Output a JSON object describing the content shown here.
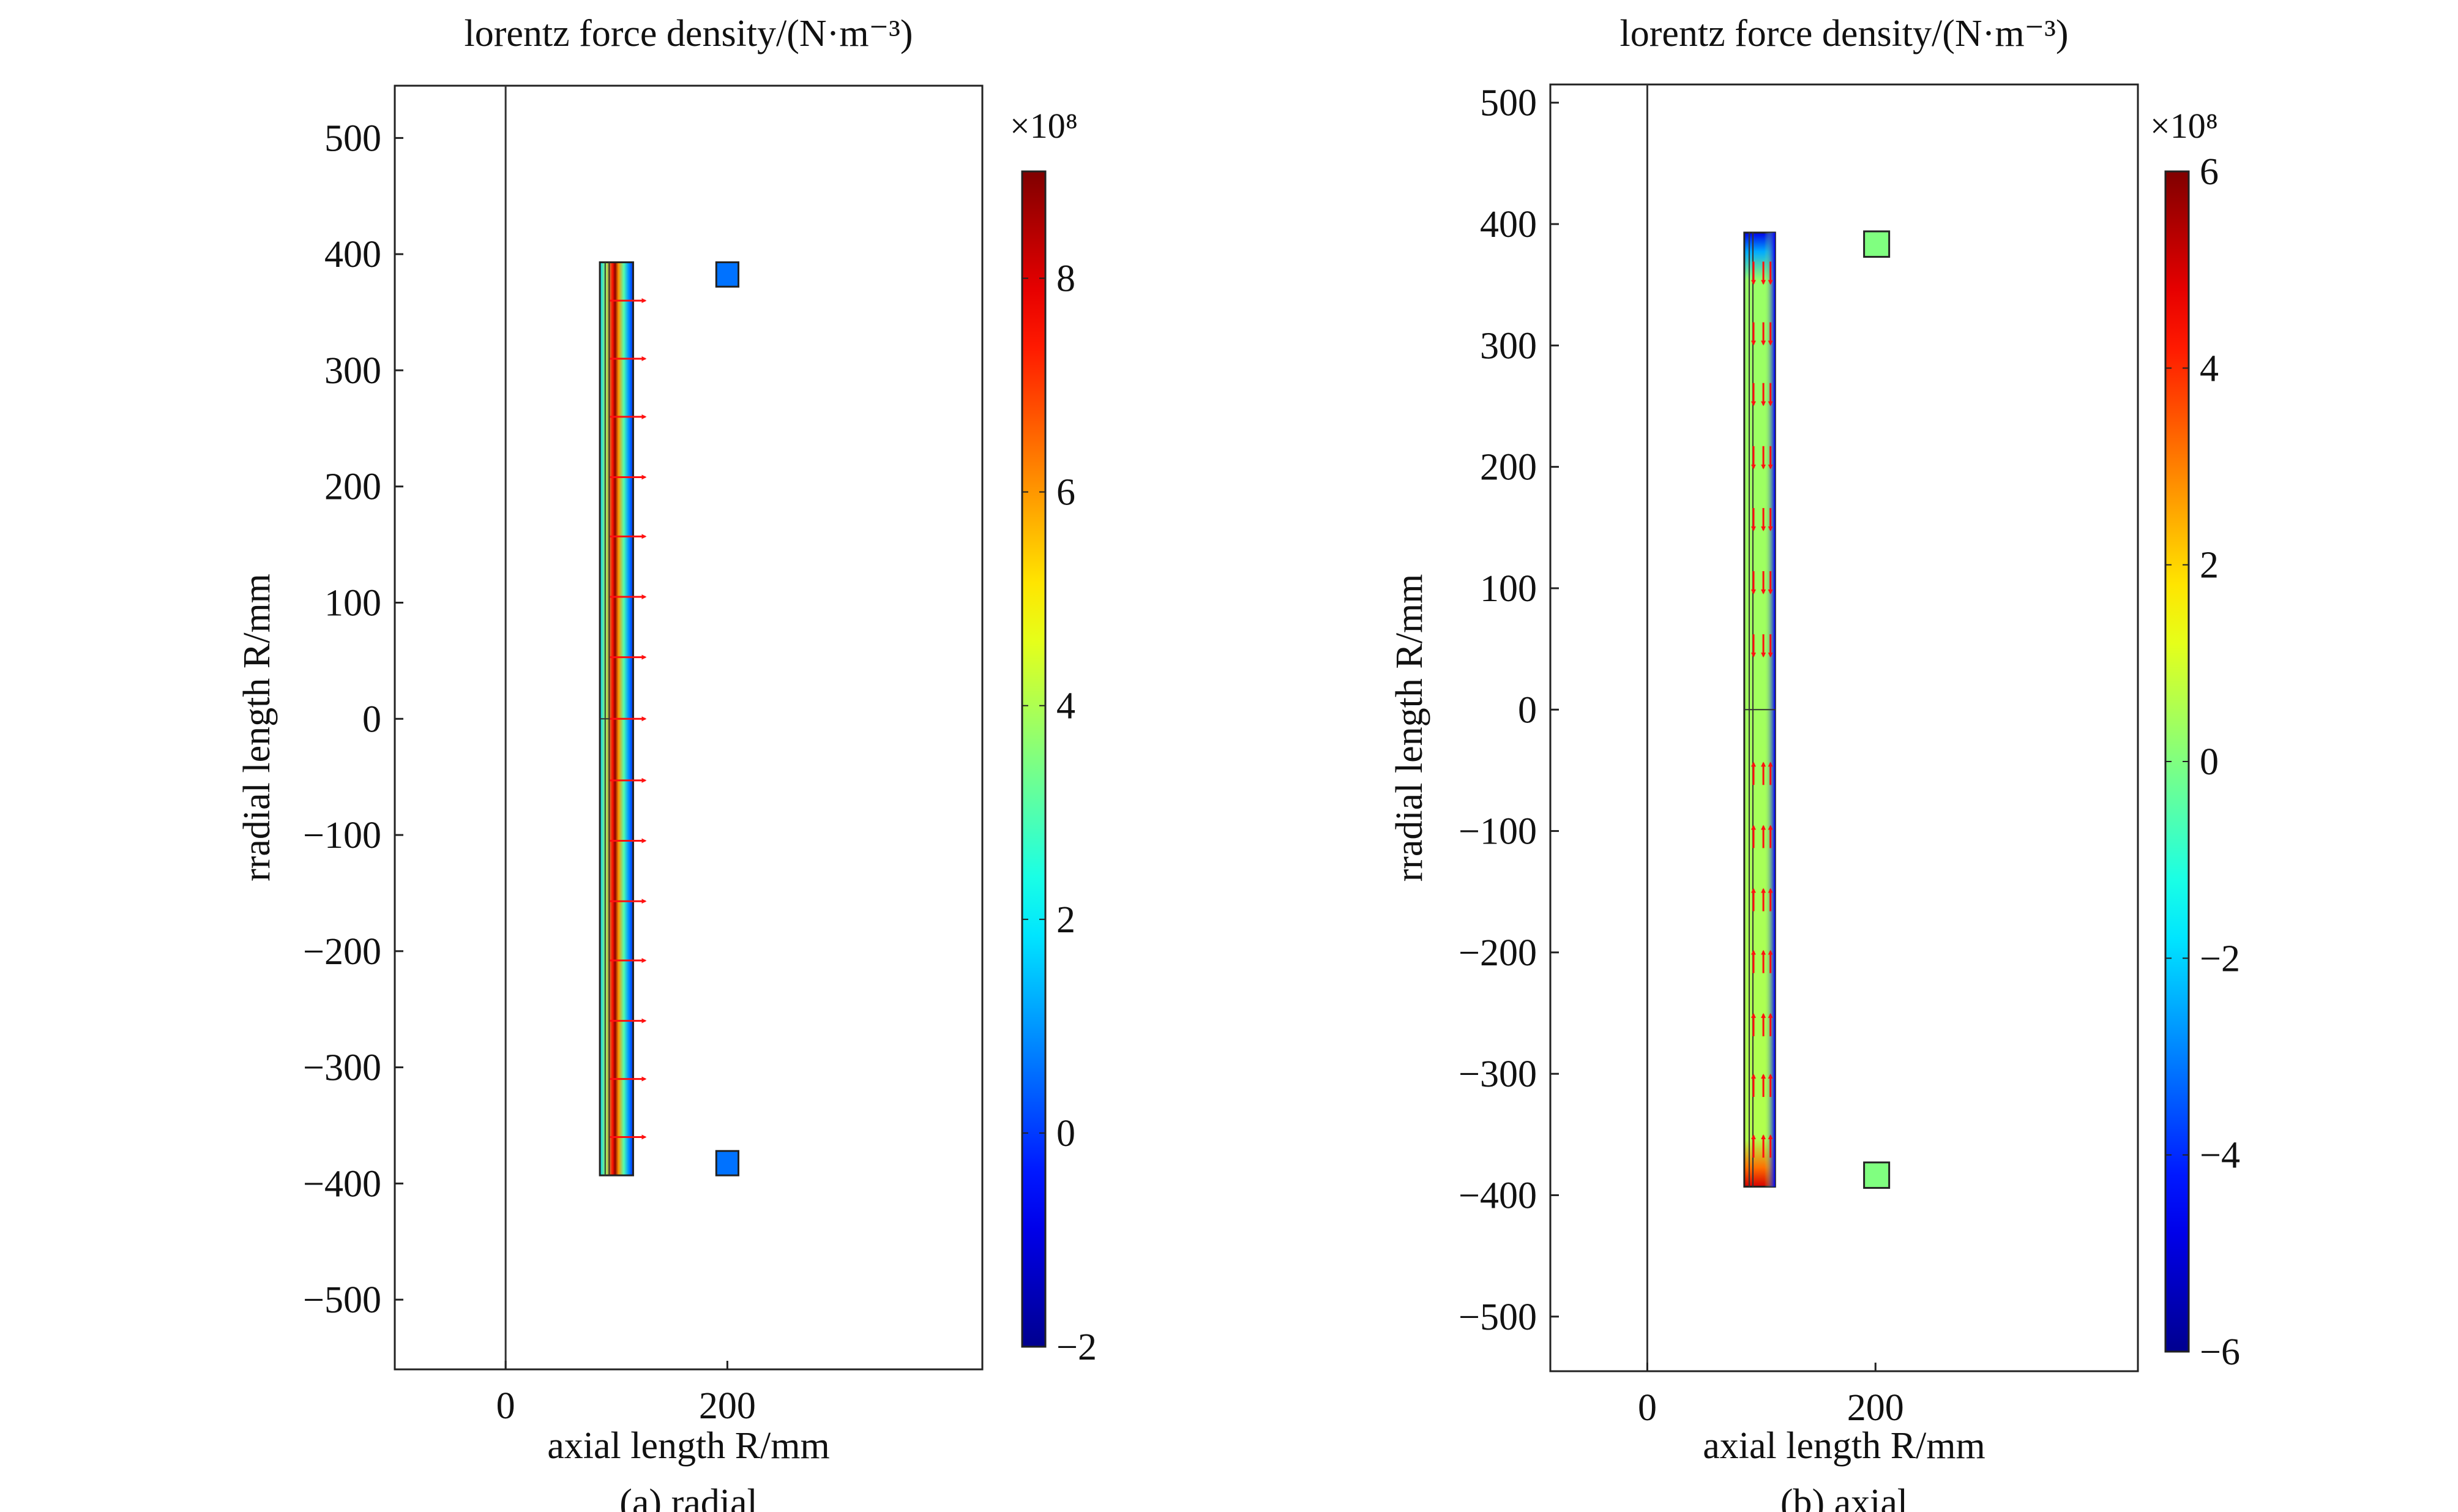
{
  "chart_data": [
    {
      "id": "radial",
      "type": "heatmap",
      "title": "lorentz force density/(N·m⁻³)",
      "xlabel": "axial length R/mm",
      "ylabel": "rradial length R/mm",
      "caption": "(a)  radial",
      "xlim": [
        -100,
        430
      ],
      "ylim": [
        -560,
        545
      ],
      "xticks": [
        0,
        200
      ],
      "yticks": [
        500,
        400,
        300,
        200,
        100,
        0,
        -100,
        -200,
        -300,
        -400,
        -500
      ],
      "grid": false,
      "colorbar": {
        "multiplier": "×10⁸",
        "range": [
          -2,
          9
        ],
        "ticks": [
          -2,
          0,
          2,
          4,
          6,
          8
        ],
        "colormap": "jet"
      },
      "regions": [
        {
          "name": "winding",
          "x_range": [
            85,
            115
          ],
          "y_range": [
            -393,
            393
          ],
          "value_profile": "radial"
        },
        {
          "name": "upper-square",
          "x_range": [
            190,
            210
          ],
          "y_range": [
            372,
            393
          ],
          "value": 0.6
        },
        {
          "name": "lower-square",
          "x_range": [
            190,
            210
          ],
          "y_range": [
            -393,
            -372
          ],
          "value": 0.6
        }
      ],
      "arrows": {
        "direction": "outward-x",
        "y_values": [
          360,
          310,
          260,
          208,
          157,
          105,
          53,
          0,
          -53,
          -105,
          -157,
          -208,
          -260,
          -310,
          -360
        ]
      },
      "axis_line_x": 0
    },
    {
      "id": "axial",
      "type": "heatmap",
      "title": "lorentz force density/(N·m⁻³)",
      "xlabel": "axial length R/mm",
      "ylabel": "rradial length R/mm",
      "caption": "(b)  axial",
      "xlim": [
        -85,
        430
      ],
      "ylim": [
        -545,
        515
      ],
      "xticks": [
        0,
        200
      ],
      "yticks": [
        500,
        400,
        300,
        200,
        100,
        0,
        -100,
        -200,
        -300,
        -400,
        -500
      ],
      "grid": false,
      "colorbar": {
        "multiplier": "×10⁸",
        "range": [
          -6,
          6
        ],
        "ticks": [
          6,
          4,
          2,
          0,
          -2,
          -4,
          -6
        ],
        "colormap": "jet"
      },
      "regions": [
        {
          "name": "winding",
          "x_range": [
            85,
            112
          ],
          "y_range": [
            -393,
            393
          ],
          "value_profile": "axial"
        },
        {
          "name": "upper-square",
          "x_range": [
            190,
            212
          ],
          "y_range": [
            373,
            394
          ],
          "value": 0
        },
        {
          "name": "lower-square",
          "x_range": [
            190,
            212
          ],
          "y_range": [
            -394,
            -373
          ],
          "value": 0
        }
      ],
      "arrows": {
        "direction": "toward-center-y",
        "y_values": [
          360,
          310,
          260,
          208,
          157,
          105,
          53,
          -53,
          -105,
          -157,
          -208,
          -260,
          -310,
          -360
        ]
      },
      "axis_line_x": 0
    }
  ]
}
